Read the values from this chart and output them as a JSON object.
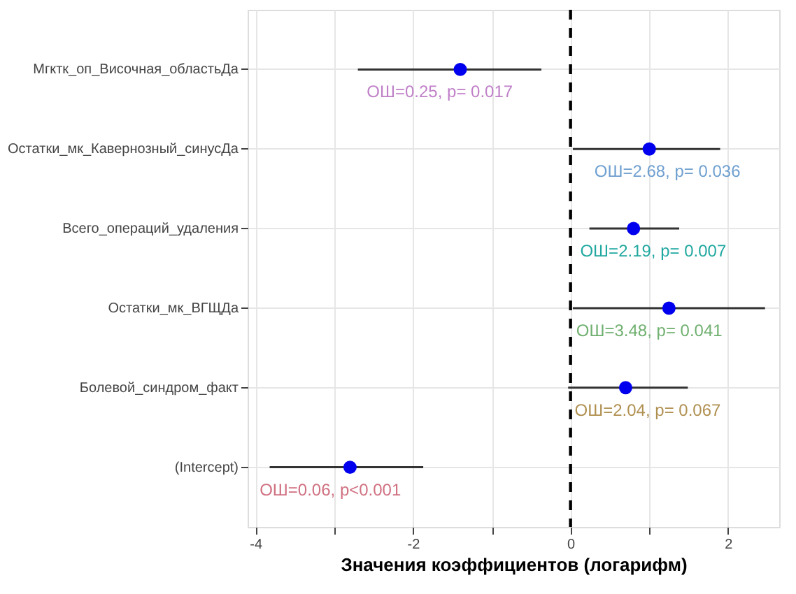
{
  "chart_data": {
    "type": "scatter",
    "orientation": "horizontal",
    "xlabel": "Значения коэффициентов (логарифм)",
    "categories": [
      "Mгктк_оп_Височная_областьДа",
      "Остатки_мк_Кавернозный_синусДа",
      "Всего_операций_удаления",
      "Остатки_мк_ВГЩДа",
      "Болевой_синдром_факт",
      "(Intercept)"
    ],
    "series": [
      {
        "color": "#0000ee",
        "values": [
          -1.4,
          1.0,
          0.8,
          1.25,
          0.7,
          -2.8
        ],
        "errors": [
          [
            -2.7,
            -0.37
          ],
          [
            0.03,
            1.9
          ],
          [
            0.24,
            1.38
          ],
          [
            0.03,
            2.47
          ],
          [
            -0.03,
            1.49
          ],
          [
            -3.82,
            -1.87
          ]
        ]
      }
    ],
    "xlim": [
      -4.1,
      2.65
    ],
    "xticks": [
      -4,
      {
        "value": -3,
        "label": null
      },
      -2,
      {
        "value": -1,
        "label": null
      },
      0,
      {
        "value": 1,
        "label": null
      },
      2
    ],
    "grid": true,
    "marker": "circle",
    "ref_lines": [
      {
        "axis": "x",
        "value": 0,
        "color": "#000000",
        "line_style": "dashed"
      }
    ],
    "annotations": [
      {
        "text": "ОШ=0.25, p= 0.017",
        "x": -1.66,
        "y": "Mгктк_оп_Височная_областьДа"
      },
      {
        "text": "ОШ=2.68, p= 0.036",
        "x": 1.23,
        "y": "Остатки_мк_Кавернозный_синусДа"
      },
      {
        "text": "ОШ=2.19, p= 0.007",
        "x": 1.05,
        "y": "Всего_операций_удаления"
      },
      {
        "text": "ОШ=3.48, p= 0.041",
        "x": 1.0,
        "y": "Остатки_мк_ВГЩДа"
      },
      {
        "text": "ОШ=2.04, p= 0.067",
        "x": 0.98,
        "y": "Болевой_синдром_факт"
      },
      {
        "text": "ОШ=0.06, p<0.001",
        "x": -3.05,
        "y": "(Intercept)"
      }
    ]
  }
}
